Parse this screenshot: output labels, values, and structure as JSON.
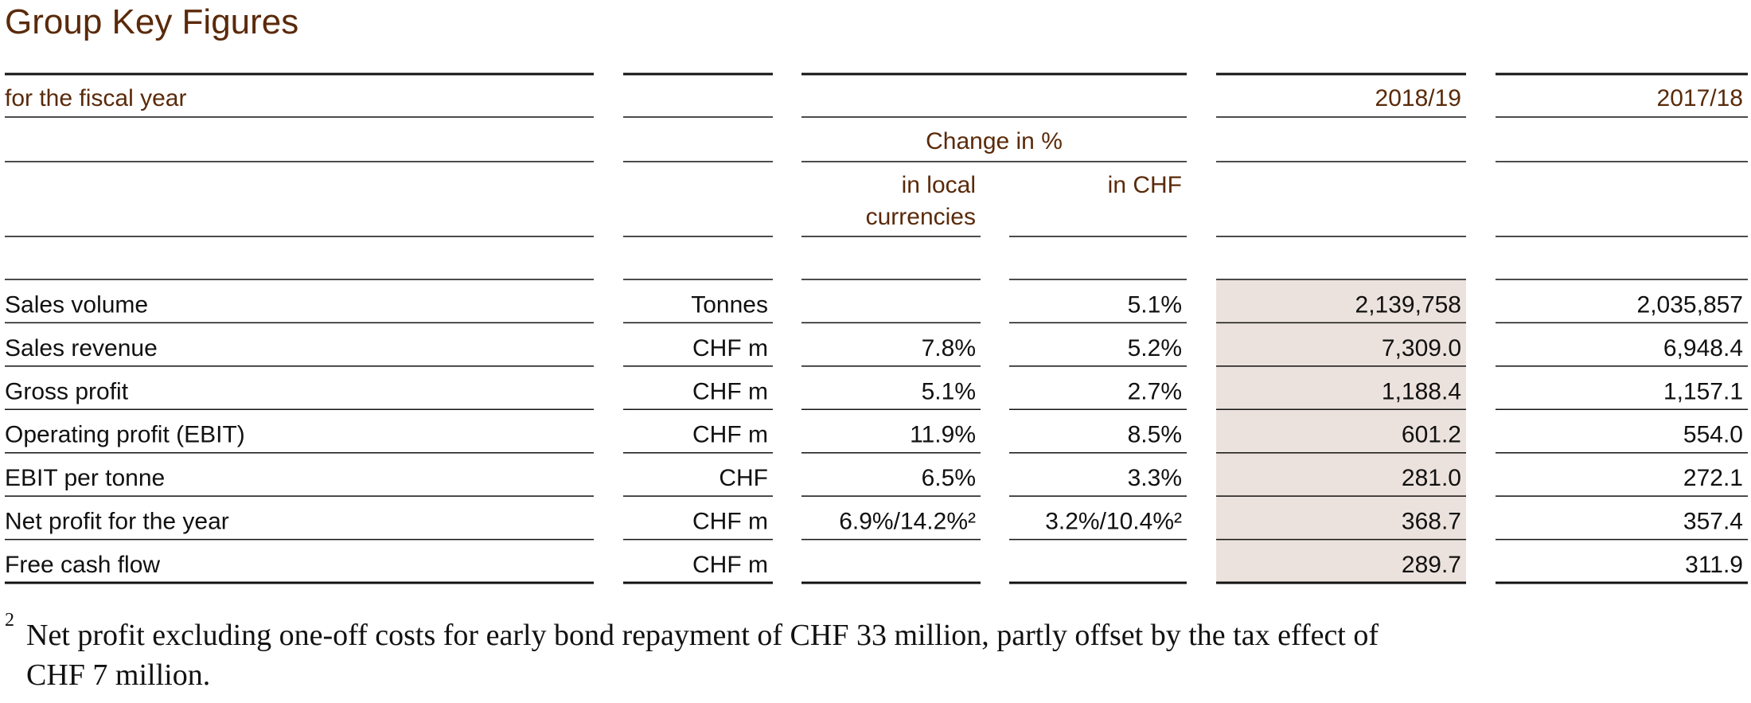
{
  "title": "Group Key Figures",
  "header": {
    "label": "for the fiscal year",
    "years": [
      "2018/19",
      "2017/18"
    ],
    "change_label": "Change in %",
    "change_cols": [
      [
        "in local",
        "currencies"
      ],
      [
        "in CHF"
      ]
    ]
  },
  "rows": [
    [
      "Sales volume",
      "Tonnes",
      null,
      "5.1%",
      "2,139,758",
      "2,035,857"
    ],
    [
      "Sales revenue",
      "CHF m",
      "7.8%",
      "5.2%",
      "7,309.0",
      "6,948.4"
    ],
    [
      "Gross profit",
      "CHF m",
      "5.1%",
      "2.7%",
      "1,188.4",
      "1,157.1"
    ],
    [
      "Operating profit (EBIT)",
      "CHF m",
      "11.9%",
      "8.5%",
      "601.2",
      "554.0"
    ],
    [
      "EBIT per tonne",
      "CHF",
      "6.5%",
      "3.3%",
      "281.0",
      "272.1"
    ],
    [
      "Net profit for the year",
      "CHF m",
      "6.9%/14.2%²",
      "3.2%/10.4%²",
      "368.7",
      "357.4"
    ],
    [
      "Free cash flow",
      "CHF m",
      null,
      null,
      "289.7",
      "311.9"
    ]
  ],
  "footnote": {
    "marker": "2",
    "lines": [
      "Net profit excluding one-off costs for early bond repayment of CHF 33 million, partly offset by the tax effect of",
      "CHF 7 million."
    ]
  }
}
